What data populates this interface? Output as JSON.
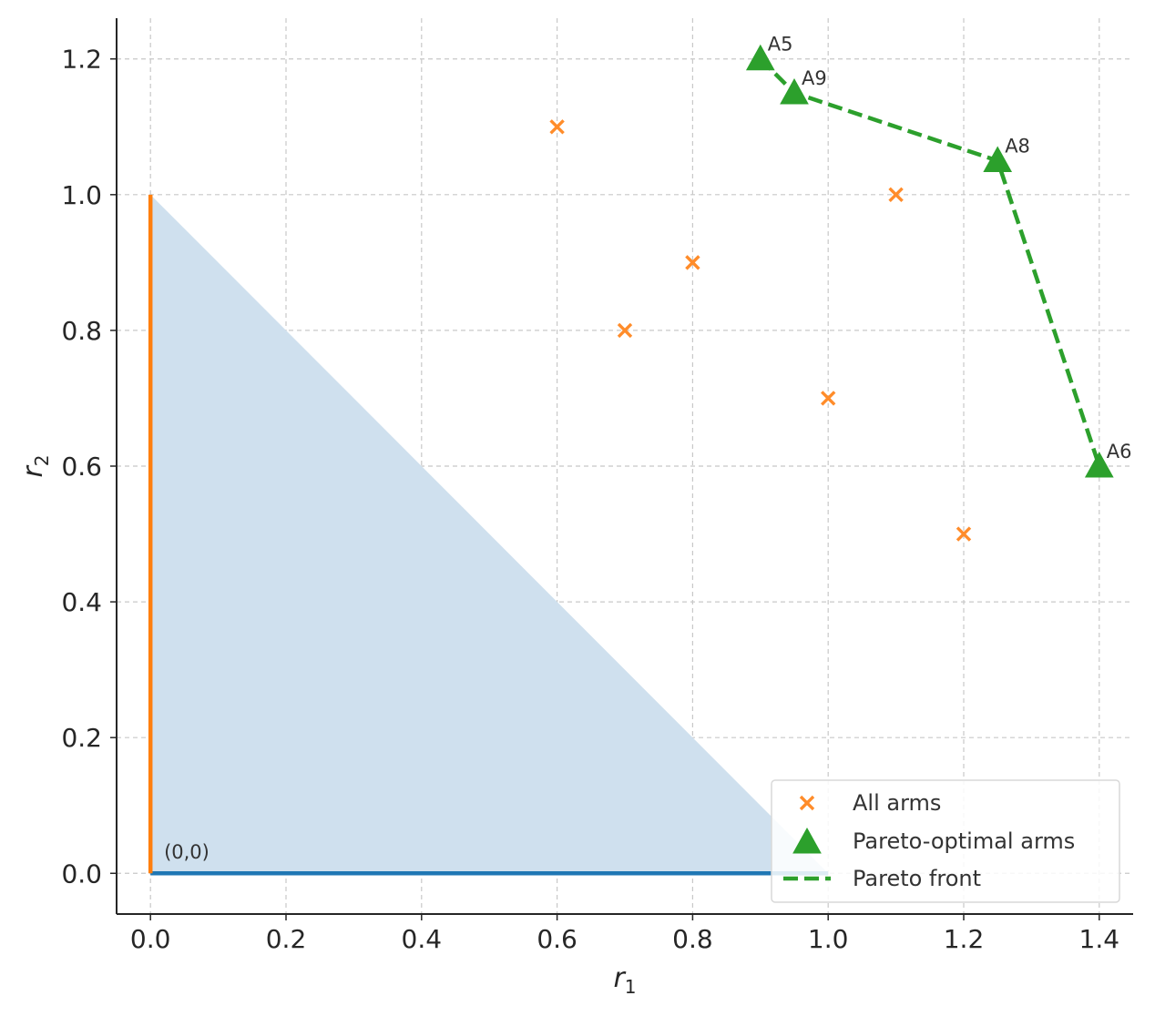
{
  "chart_data": {
    "type": "scatter",
    "title": "",
    "xlabel": {
      "base": "r",
      "sub": "1"
    },
    "ylabel": {
      "base": "r",
      "sub": "2"
    },
    "xlim": [
      -0.05,
      1.45
    ],
    "ylim": [
      -0.06,
      1.26
    ],
    "xticks": [
      0.0,
      0.2,
      0.4,
      0.6,
      0.8,
      1.0,
      1.2,
      1.4
    ],
    "xtick_labels": [
      "0.0",
      "0.2",
      "0.4",
      "0.6",
      "0.8",
      "1.0",
      "1.2",
      "1.4"
    ],
    "yticks": [
      0.0,
      0.2,
      0.4,
      0.6,
      0.8,
      1.0,
      1.2
    ],
    "ytick_labels": [
      "0.0",
      "0.2",
      "0.4",
      "0.6",
      "0.8",
      "1.0",
      "1.2"
    ],
    "grid": true,
    "legend_position": "lower-right",
    "simplex_region": {
      "vertices": [
        [
          0,
          0
        ],
        [
          1,
          0
        ],
        [
          0,
          1
        ]
      ],
      "color": "#cfe0ee"
    },
    "axis_segments": [
      {
        "from": [
          0,
          0
        ],
        "to": [
          1,
          0
        ],
        "color": "#1f77b4"
      },
      {
        "from": [
          0,
          0
        ],
        "to": [
          0,
          1
        ],
        "color": "#ff7f0e"
      }
    ],
    "origin_annotation": {
      "text": "(0,0)",
      "x": 0.02,
      "y": 0.01
    },
    "series": [
      {
        "name": "All arms",
        "marker": "x",
        "color": "#ff8c2a",
        "points": [
          {
            "x": 0.6,
            "y": 1.1
          },
          {
            "x": 0.7,
            "y": 0.8
          },
          {
            "x": 0.8,
            "y": 0.9
          },
          {
            "x": 1.0,
            "y": 0.7
          },
          {
            "x": 1.1,
            "y": 1.0
          },
          {
            "x": 1.2,
            "y": 0.5
          }
        ]
      },
      {
        "name": "Pareto-optimal arms",
        "marker": "triangle",
        "color": "#2ca02c",
        "points": [
          {
            "x": 0.9,
            "y": 1.2,
            "label": "A5"
          },
          {
            "x": 0.95,
            "y": 1.15,
            "label": "A9"
          },
          {
            "x": 1.25,
            "y": 1.05,
            "label": "A8"
          },
          {
            "x": 1.4,
            "y": 0.6,
            "label": "A6"
          }
        ]
      },
      {
        "name": "Pareto front",
        "marker": "dashed-line",
        "color": "#2ca02c",
        "points": [
          {
            "x": 0.9,
            "y": 1.2
          },
          {
            "x": 0.95,
            "y": 1.15
          },
          {
            "x": 1.25,
            "y": 1.05
          },
          {
            "x": 1.4,
            "y": 0.6
          }
        ]
      }
    ],
    "colors": {
      "axis": "#262626",
      "grid": "#c8c8c8",
      "legend_border": "#d9d9d9"
    }
  }
}
